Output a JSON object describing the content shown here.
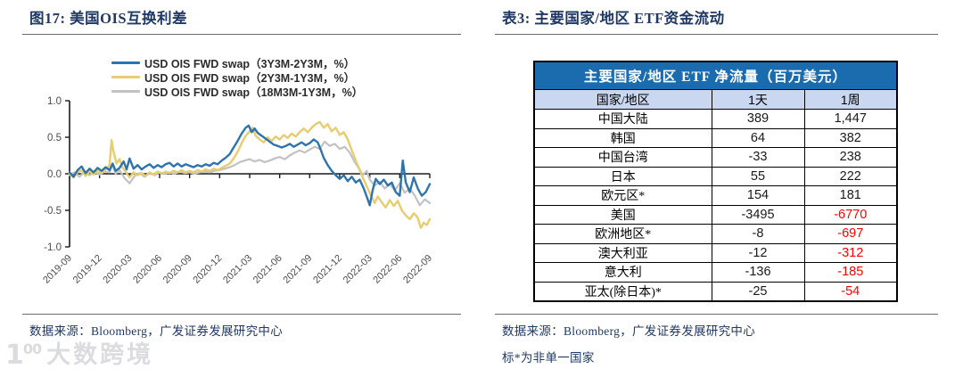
{
  "left_panel": {
    "title": "图17:  美国OIS互换利差",
    "source": "数据来源：Bloomberg，广发证券发展研究中心"
  },
  "right_panel": {
    "title": "表3:  主要国家/地区 ETF资金流动",
    "source": "数据来源：Bloomberg，广发证券发展研究中心",
    "note": "标*为非单一国家",
    "table": {
      "header": "主要国家/地区 ETF 净流量（百万美元）",
      "columns": [
        "国家/地区",
        "1天",
        "1周"
      ],
      "rows": [
        {
          "region": "中国大陆",
          "day": "389",
          "week": "1,447"
        },
        {
          "region": "韩国",
          "day": "64",
          "week": "382"
        },
        {
          "region": "中国台湾",
          "day": "-33",
          "week": "238"
        },
        {
          "region": "日本",
          "day": "55",
          "week": "222"
        },
        {
          "region": "欧元区*",
          "day": "154",
          "week": "181"
        },
        {
          "region": "美国",
          "day": "-3495",
          "week": "-6770"
        },
        {
          "region": "欧洲地区*",
          "day": "-8",
          "week": "-697"
        },
        {
          "region": "澳大利亚",
          "day": "-12",
          "week": "-312"
        },
        {
          "region": "意大利",
          "day": "-136",
          "week": "-185"
        },
        {
          "region": "亚太(除日本)*",
          "day": "-25",
          "week": "-54"
        }
      ],
      "header_bg": "#1B6CAE",
      "subheader_bg": "#C9D7F0",
      "negative_week_color": "#FF0000"
    }
  },
  "watermark": {
    "logo_text": "1",
    "logo_sup": "00",
    "text": "大数跨境"
  },
  "colors": {
    "title_navy": "#1F3864",
    "axis_gray": "#4d4d4d",
    "rule_gray": "#6b6b6b"
  },
  "chart_data": {
    "type": "line",
    "title": "",
    "xlabel": "",
    "ylabel": "",
    "x_unit": "months since 2019-09",
    "xlim_months": [
      0,
      36
    ],
    "ylim": [
      -1.0,
      1.0
    ],
    "y_ticks": [
      1.0,
      0.5,
      0.0,
      -0.5,
      -1.0
    ],
    "x_ticks": [
      "2019-09",
      "2019-12",
      "2020-03",
      "2020-06",
      "2020-09",
      "2020-12",
      "2021-03",
      "2021-06",
      "2021-09",
      "2021-12",
      "2022-03",
      "2022-06",
      "2022-09"
    ],
    "x_tick_interval_months": 3,
    "grid": false,
    "legend_position": "top",
    "series": [
      {
        "name": "USD OIS FWD swap（3Y3M-2Y3M，%）",
        "color": "#2D74AD",
        "width": 2.4,
        "points": [
          [
            0,
            0.02
          ],
          [
            0.4,
            -0.04
          ],
          [
            0.8,
            0.05
          ],
          [
            1.2,
            0.1
          ],
          [
            1.6,
            0.01
          ],
          [
            2,
            0.07
          ],
          [
            2.4,
            0.02
          ],
          [
            2.8,
            0.08
          ],
          [
            3.2,
            0.04
          ],
          [
            3.6,
            0.09
          ],
          [
            4,
            0.05
          ],
          [
            4.3,
            0.14
          ],
          [
            4.6,
            0.04
          ],
          [
            5,
            0.08
          ],
          [
            5.4,
            0.17
          ],
          [
            5.7,
            0.06
          ],
          [
            6,
            0.21
          ],
          [
            6.4,
            0.07
          ],
          [
            6.8,
            0.12
          ],
          [
            7.2,
            0.06
          ],
          [
            7.6,
            0.1
          ],
          [
            8,
            0.13
          ],
          [
            8.4,
            0.08
          ],
          [
            8.8,
            0.12
          ],
          [
            9.2,
            0.09
          ],
          [
            9.6,
            0.13
          ],
          [
            10,
            0.15
          ],
          [
            10.4,
            0.1
          ],
          [
            10.8,
            0.14
          ],
          [
            11.2,
            0.1
          ],
          [
            11.6,
            0.13
          ],
          [
            12,
            0.11
          ],
          [
            12.4,
            0.09
          ],
          [
            12.8,
            0.12
          ],
          [
            13.2,
            0.1
          ],
          [
            13.6,
            0.13
          ],
          [
            14,
            0.11
          ],
          [
            14.4,
            0.15
          ],
          [
            14.8,
            0.13
          ],
          [
            15.2,
            0.18
          ],
          [
            15.6,
            0.22
          ],
          [
            16,
            0.27
          ],
          [
            16.4,
            0.36
          ],
          [
            16.8,
            0.45
          ],
          [
            17.2,
            0.55
          ],
          [
            17.6,
            0.63
          ],
          [
            17.9,
            0.66
          ],
          [
            18.2,
            0.57
          ],
          [
            18.5,
            0.62
          ],
          [
            18.8,
            0.56
          ],
          [
            19.2,
            0.52
          ],
          [
            19.6,
            0.48
          ],
          [
            20,
            0.44
          ],
          [
            20.4,
            0.4
          ],
          [
            20.8,
            0.38
          ],
          [
            21.2,
            0.36
          ],
          [
            21.6,
            0.38
          ],
          [
            22,
            0.41
          ],
          [
            22.4,
            0.37
          ],
          [
            22.8,
            0.4
          ],
          [
            23.2,
            0.43
          ],
          [
            23.6,
            0.39
          ],
          [
            24,
            0.42
          ],
          [
            24.4,
            0.47
          ],
          [
            24.8,
            0.43
          ],
          [
            25.1,
            0.33
          ],
          [
            25.4,
            0.22
          ],
          [
            25.8,
            0.12
          ],
          [
            26.2,
            0.04
          ],
          [
            26.6,
            -0.02
          ],
          [
            27,
            -0.07
          ],
          [
            27.4,
            -0.02
          ],
          [
            27.8,
            -0.1
          ],
          [
            28.2,
            -0.04
          ],
          [
            28.6,
            -0.12
          ],
          [
            29,
            -0.08
          ],
          [
            29.4,
            -0.2
          ],
          [
            29.8,
            -0.35
          ],
          [
            30,
            -0.43
          ],
          [
            30.3,
            -0.22
          ],
          [
            30.6,
            -0.07
          ],
          [
            31,
            -0.14
          ],
          [
            31.4,
            -0.08
          ],
          [
            31.8,
            -0.16
          ],
          [
            32.2,
            -0.12
          ],
          [
            32.6,
            -0.25
          ],
          [
            33,
            -0.3
          ],
          [
            33.3,
            0.18
          ],
          [
            33.6,
            -0.12
          ],
          [
            34,
            -0.25
          ],
          [
            34.4,
            -0.05
          ],
          [
            34.8,
            -0.2
          ],
          [
            35.2,
            -0.3
          ],
          [
            35.6,
            -0.25
          ],
          [
            36,
            -0.14
          ]
        ]
      },
      {
        "name": "USD OIS FWD swap（2Y3M-1Y3M，%）",
        "color": "#E7CC70",
        "width": 2.4,
        "points": [
          [
            0,
            0
          ],
          [
            0.4,
            -0.05
          ],
          [
            0.8,
            0.02
          ],
          [
            1.2,
            0.05
          ],
          [
            1.6,
            -0.03
          ],
          [
            2,
            0.03
          ],
          [
            2.4,
            -0.01
          ],
          [
            2.8,
            0.04
          ],
          [
            3.2,
            0.01
          ],
          [
            3.6,
            0.06
          ],
          [
            4,
            0.12
          ],
          [
            4.2,
            0.46
          ],
          [
            4.4,
            0.3
          ],
          [
            4.7,
            0.14
          ],
          [
            5,
            0.2
          ],
          [
            5.3,
            0.08
          ],
          [
            5.6,
            0.03
          ],
          [
            6,
            -0.05
          ],
          [
            6.4,
            0.02
          ],
          [
            6.8,
            -0.02
          ],
          [
            7.2,
            0.01
          ],
          [
            7.6,
            -0.03
          ],
          [
            8,
            0.02
          ],
          [
            8.4,
            -0.01
          ],
          [
            8.8,
            0.03
          ],
          [
            9.2,
            0
          ],
          [
            9.6,
            0.03
          ],
          [
            10,
            0.01
          ],
          [
            10.4,
            0.04
          ],
          [
            10.8,
            0.02
          ],
          [
            11.2,
            0.05
          ],
          [
            11.6,
            0.02
          ],
          [
            12,
            0.04
          ],
          [
            12.4,
            0.02
          ],
          [
            12.8,
            0.05
          ],
          [
            13.2,
            0.03
          ],
          [
            13.6,
            0.06
          ],
          [
            14,
            0.04
          ],
          [
            14.4,
            0.07
          ],
          [
            14.8,
            0.05
          ],
          [
            15.2,
            0.08
          ],
          [
            15.6,
            0.11
          ],
          [
            16,
            0.14
          ],
          [
            16.4,
            0.21
          ],
          [
            16.8,
            0.3
          ],
          [
            17.2,
            0.42
          ],
          [
            17.6,
            0.52
          ],
          [
            18,
            0.58
          ],
          [
            18.3,
            0.63
          ],
          [
            18.6,
            0.52
          ],
          [
            19,
            0.47
          ],
          [
            19.4,
            0.43
          ],
          [
            19.8,
            0.5
          ],
          [
            20.2,
            0.45
          ],
          [
            20.6,
            0.51
          ],
          [
            21,
            0.47
          ],
          [
            21.4,
            0.53
          ],
          [
            21.8,
            0.49
          ],
          [
            22.2,
            0.55
          ],
          [
            22.6,
            0.51
          ],
          [
            23,
            0.57
          ],
          [
            23.4,
            0.62
          ],
          [
            23.8,
            0.57
          ],
          [
            24.2,
            0.63
          ],
          [
            24.6,
            0.68
          ],
          [
            25,
            0.71
          ],
          [
            25.4,
            0.63
          ],
          [
            25.8,
            0.68
          ],
          [
            26.2,
            0.58
          ],
          [
            26.6,
            0.63
          ],
          [
            27,
            0.53
          ],
          [
            27.4,
            0.57
          ],
          [
            27.8,
            0.47
          ],
          [
            28.2,
            0.32
          ],
          [
            28.6,
            0.18
          ],
          [
            29,
            0.05
          ],
          [
            29.4,
            -0.08
          ],
          [
            29.8,
            -0.2
          ],
          [
            30.2,
            -0.32
          ],
          [
            30.5,
            -0.4
          ],
          [
            30.8,
            -0.31
          ],
          [
            31.2,
            -0.39
          ],
          [
            31.6,
            -0.46
          ],
          [
            32,
            -0.36
          ],
          [
            32.4,
            -0.44
          ],
          [
            32.8,
            -0.37
          ],
          [
            33.2,
            -0.5
          ],
          [
            33.6,
            -0.57
          ],
          [
            34,
            -0.62
          ],
          [
            34.4,
            -0.54
          ],
          [
            34.8,
            -0.6
          ],
          [
            35.1,
            -0.74
          ],
          [
            35.4,
            -0.67
          ],
          [
            35.7,
            -0.7
          ],
          [
            36,
            -0.62
          ]
        ]
      },
      {
        "name": "USD OIS FWD swap（18M3M-1Y3M，%）",
        "color": "#C2C2C2",
        "width": 2.2,
        "points": [
          [
            0,
            -0.02
          ],
          [
            0.5,
            0.02
          ],
          [
            1,
            -0.04
          ],
          [
            1.5,
            0.03
          ],
          [
            2,
            -0.02
          ],
          [
            2.5,
            0.02
          ],
          [
            3,
            -0.01
          ],
          [
            3.5,
            0.03
          ],
          [
            4,
            0.02
          ],
          [
            4.3,
            0.13
          ],
          [
            4.6,
            0
          ],
          [
            5,
            0.05
          ],
          [
            5.5,
            -0.06
          ],
          [
            6,
            -0.13
          ],
          [
            6.5,
            -0.03
          ],
          [
            7,
            0.01
          ],
          [
            7.5,
            -0.04
          ],
          [
            8,
            0.01
          ],
          [
            8.5,
            -0.02
          ],
          [
            9,
            0.02
          ],
          [
            9.5,
            0
          ],
          [
            10,
            0.02
          ],
          [
            10.5,
            0
          ],
          [
            11,
            0.03
          ],
          [
            11.5,
            0.01
          ],
          [
            12,
            0.02
          ],
          [
            12.5,
            0
          ],
          [
            13,
            0.02
          ],
          [
            13.5,
            0.03
          ],
          [
            14,
            0.02
          ],
          [
            14.5,
            0.04
          ],
          [
            15,
            0.05
          ],
          [
            15.5,
            0.07
          ],
          [
            16,
            0.09
          ],
          [
            16.5,
            0.12
          ],
          [
            17,
            0.16
          ],
          [
            17.5,
            0.18
          ],
          [
            18,
            0.2
          ],
          [
            18.5,
            0.17
          ],
          [
            19,
            0.19
          ],
          [
            19.5,
            0.16
          ],
          [
            20,
            0.18
          ],
          [
            20.5,
            0.21
          ],
          [
            21,
            0.23
          ],
          [
            21.5,
            0.2
          ],
          [
            22,
            0.25
          ],
          [
            22.5,
            0.29
          ],
          [
            23,
            0.32
          ],
          [
            23.5,
            0.29
          ],
          [
            24,
            0.33
          ],
          [
            24.5,
            0.37
          ],
          [
            25,
            0.34
          ],
          [
            25.5,
            0.44
          ],
          [
            26,
            0.38
          ],
          [
            26.5,
            0.41
          ],
          [
            27,
            0.34
          ],
          [
            27.5,
            0.37
          ],
          [
            28,
            0.29
          ],
          [
            28.5,
            0.16
          ],
          [
            29,
            0.06
          ],
          [
            29.3,
            -0.02
          ],
          [
            29.7,
            0.04
          ],
          [
            30,
            -0.08
          ],
          [
            30.5,
            -0.16
          ],
          [
            31,
            -0.11
          ],
          [
            31.5,
            -0.2
          ],
          [
            32,
            -0.14
          ],
          [
            32.5,
            -0.23
          ],
          [
            33,
            -0.13
          ],
          [
            33.5,
            -0.26
          ],
          [
            34,
            -0.2
          ],
          [
            34.5,
            -0.3
          ],
          [
            35,
            -0.43
          ],
          [
            35.5,
            -0.35
          ],
          [
            36,
            -0.4
          ]
        ]
      }
    ]
  }
}
